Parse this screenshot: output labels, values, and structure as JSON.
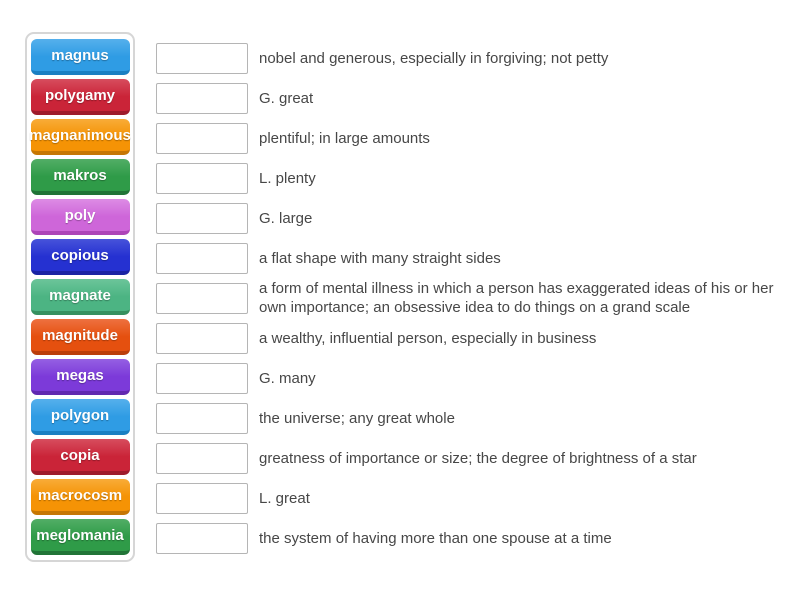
{
  "activity": {
    "type": "match-up-quiz",
    "background_color": "#ffffff",
    "panel_border_color": "#d6d6d6",
    "drop_box_border_color": "#b5b5b5",
    "definition_text_color": "#474747"
  },
  "word_bank": {
    "items": [
      {
        "label": "magnus",
        "color": "#2f9ce4",
        "color_light": "#55b0ec",
        "color_dark": "#1a7fc2"
      },
      {
        "label": "polygamy",
        "color": "#ca2438",
        "color_light": "#d74d5e",
        "color_dark": "#9e1b2c"
      },
      {
        "label": "magnanimous",
        "color": "#f59305",
        "color_light": "#f8ac38",
        "color_dark": "#c67703"
      },
      {
        "label": "makros",
        "color": "#2f9b48",
        "color_light": "#52ae66",
        "color_dark": "#217437"
      },
      {
        "label": "poly",
        "color": "#ce66d9",
        "color_light": "#dd8ce5",
        "color_dark": "#ad44b8"
      },
      {
        "label": "copious",
        "color": "#2531d1",
        "color_light": "#4753da",
        "color_dark": "#1a23a3"
      },
      {
        "label": "magnate",
        "color": "#4cb483",
        "color_light": "#6cc59a",
        "color_dark": "#36905f"
      },
      {
        "label": "magnitude",
        "color": "#e5500f",
        "color_light": "#ee7140",
        "color_dark": "#bb3e0a"
      },
      {
        "label": "megas",
        "color": "#7c3ad9",
        "color_light": "#9560e3",
        "color_dark": "#6128b0"
      },
      {
        "label": "polygon",
        "color": "#2f9ce4",
        "color_light": "#55b0ec",
        "color_dark": "#1a7fc2"
      },
      {
        "label": "copia",
        "color": "#ca2438",
        "color_light": "#d74d5e",
        "color_dark": "#9e1b2c"
      },
      {
        "label": "macrocosm",
        "color": "#f59305",
        "color_light": "#f8ac38",
        "color_dark": "#c67703"
      },
      {
        "label": "meglomania",
        "color": "#2f9b48",
        "color_light": "#52ae66",
        "color_dark": "#217437"
      }
    ]
  },
  "match_rows": [
    {
      "definition": "nobel and generous, especially in forgiving; not petty"
    },
    {
      "definition": "G. great"
    },
    {
      "definition": "plentiful; in large amounts"
    },
    {
      "definition": "L. plenty"
    },
    {
      "definition": "G. large"
    },
    {
      "definition": "a flat shape with many straight sides"
    },
    {
      "definition": "a form of mental illness in which a person has exaggerated ideas of his or her own importance; an obsessive idea to do things on a grand scale"
    },
    {
      "definition": "a wealthy, influential person, especially in business"
    },
    {
      "definition": "G. many"
    },
    {
      "definition": "the universe; any great whole"
    },
    {
      "definition": "greatness of importance or size; the degree of brightness of a star"
    },
    {
      "definition": "L. great"
    },
    {
      "definition": "the system of having more than one spouse at a time"
    }
  ]
}
